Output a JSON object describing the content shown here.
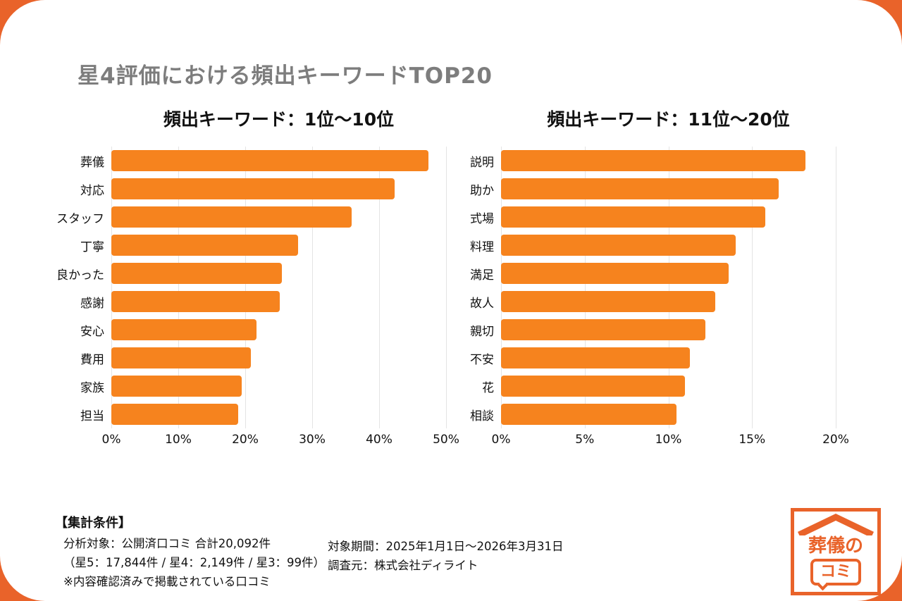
{
  "accent": {
    "frame": "#E9632A",
    "bar": "#F6831E",
    "title_gray": "#7D7D7D",
    "gridline": "#E4E4E4"
  },
  "title": "星4評価における頻出キーワードTOP20",
  "chart_data": [
    {
      "type": "bar",
      "orientation": "horizontal",
      "title": "頻出キーワード：1位〜10位",
      "categories": [
        "葬儀",
        "対応",
        "スタッフ",
        "丁寧",
        "良かった",
        "感謝",
        "安心",
        "費用",
        "家族",
        "担当"
      ],
      "values": [
        47.4,
        42.3,
        35.9,
        27.9,
        25.5,
        25.2,
        21.7,
        20.8,
        19.5,
        18.9
      ],
      "xlim": [
        0,
        50
      ],
      "ticks": [
        0,
        10,
        20,
        30,
        40,
        50
      ],
      "unit": "%",
      "grid": true,
      "legend": "none"
    },
    {
      "type": "bar",
      "orientation": "horizontal",
      "title": "頻出キーワード：11位〜20位",
      "categories": [
        "説明",
        "助か",
        "式場",
        "料理",
        "満足",
        "故人",
        "親切",
        "不安",
        "花",
        "相談"
      ],
      "values": [
        18.2,
        16.6,
        15.8,
        14.0,
        13.6,
        12.8,
        12.2,
        11.3,
        11.0,
        10.5
      ],
      "xlim": [
        0,
        20
      ],
      "ticks": [
        0,
        5,
        10,
        15,
        20
      ],
      "unit": "%",
      "grid": true,
      "legend": "none"
    }
  ],
  "footer": {
    "heading": "【集計条件】",
    "left_lines": [
      "分析対象：公開済口コミ 合計20,092件",
      "（星5：17,844件 / 星4：2,149件 / 星3：99件）",
      "※内容確認済みで掲載されている口コミ"
    ],
    "right_lines": [
      "対象期間：2025年1月1日〜2026年3月31日",
      "調査元：株式会社ディライト"
    ]
  },
  "logo": {
    "line1": "葬儀の",
    "bubble": "コミ"
  }
}
